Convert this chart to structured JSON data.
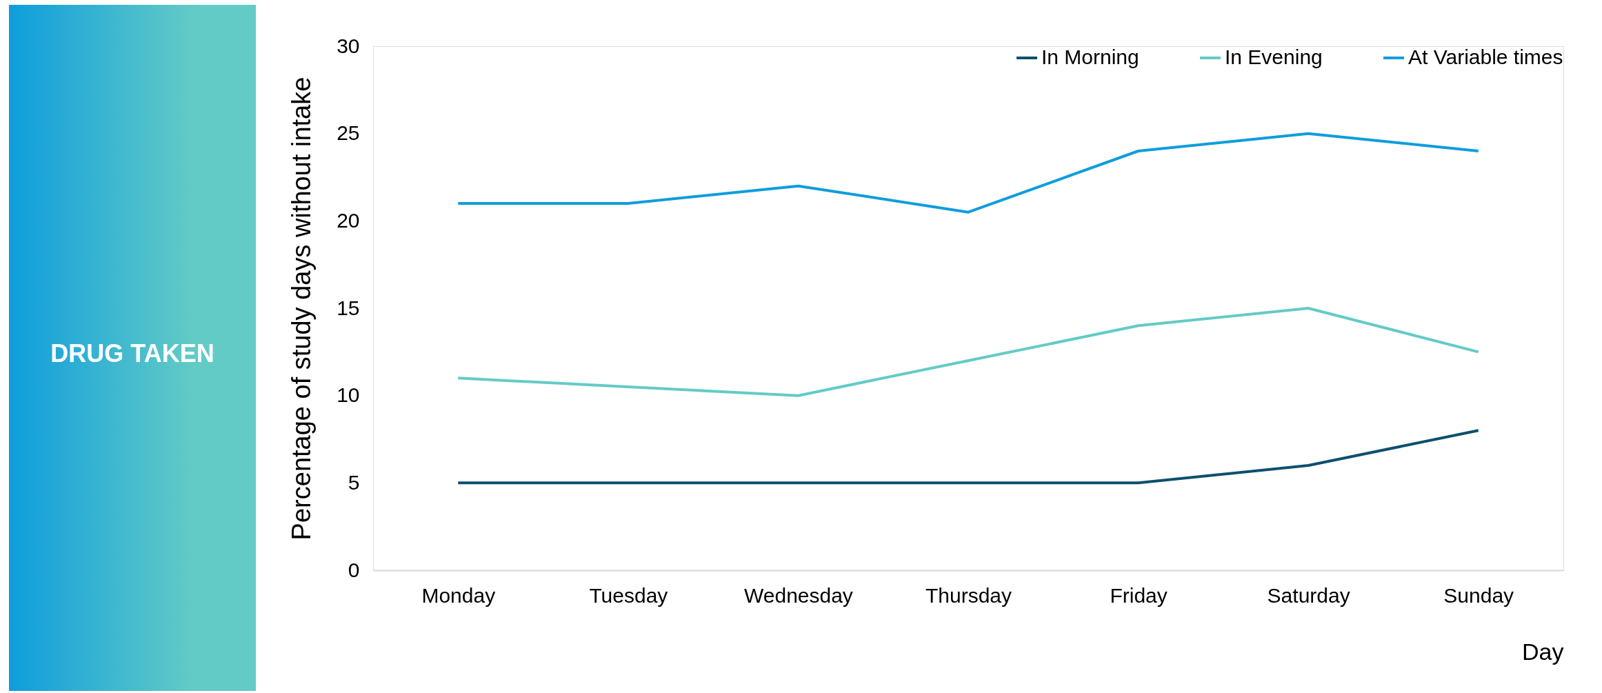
{
  "chart_data": {
    "type": "line",
    "title": "DRUG TAKEN",
    "xlabel": "Day",
    "ylabel": "Percentage of study days without intake",
    "categories": [
      "Monday",
      "Tuesday",
      "Wednesday",
      "Thursday",
      "Friday",
      "Saturday",
      "Sunday"
    ],
    "series": [
      {
        "name": "In Morning",
        "color": "#0d4f6e",
        "values": [
          5,
          5,
          5,
          5,
          5,
          6,
          8
        ]
      },
      {
        "name": "In Evening",
        "color": "#63cbc6",
        "values": [
          11,
          10.5,
          10,
          12,
          14,
          15,
          12.5
        ]
      },
      {
        "name": "At Variable times",
        "color": "#0e9ddc",
        "values": [
          21,
          21,
          22,
          20.5,
          24,
          25,
          24
        ]
      }
    ],
    "ylim": [
      0,
      30
    ],
    "yticks": [
      0,
      5,
      10,
      15,
      20,
      25,
      30
    ],
    "grid": false,
    "legend": "top right"
  }
}
